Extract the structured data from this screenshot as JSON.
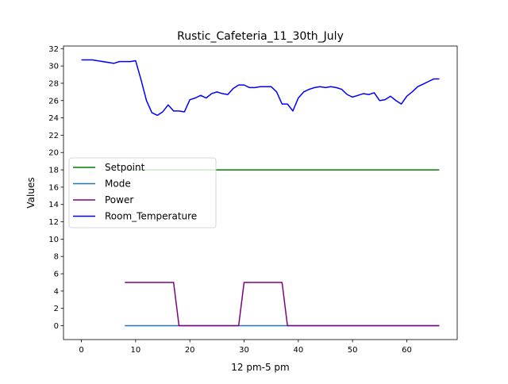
{
  "chart_data": {
    "type": "line",
    "title": "Rustic_Cafeteria_11_30th_July",
    "xlabel": "12 pm-5 pm",
    "ylabel": "Values",
    "xlim": [
      -3.3,
      69.3
    ],
    "ylim": [
      -1.6,
      32.3
    ],
    "xticks": [
      0,
      10,
      20,
      30,
      40,
      50,
      60
    ],
    "yticks": [
      0,
      2,
      4,
      6,
      8,
      10,
      12,
      14,
      16,
      18,
      20,
      22,
      24,
      26,
      28,
      30,
      32
    ],
    "grid": false,
    "legend_position": "center-left",
    "series": [
      {
        "name": "Setpoint",
        "color": "#008000",
        "points": [
          [
            8,
            18
          ],
          [
            66,
            18
          ]
        ]
      },
      {
        "name": "Mode",
        "color": "#1f77b4",
        "points": [
          [
            8,
            0
          ],
          [
            66,
            0
          ]
        ]
      },
      {
        "name": "Power",
        "color": "#800080",
        "points": [
          [
            8,
            5
          ],
          [
            17,
            5
          ],
          [
            18,
            0
          ],
          [
            29,
            0
          ],
          [
            30,
            5
          ],
          [
            37,
            5
          ],
          [
            38,
            0
          ],
          [
            66,
            0
          ]
        ]
      },
      {
        "name": "Room_Temperature",
        "color": "#0000ff",
        "points": [
          [
            0,
            30.7
          ],
          [
            2,
            30.7
          ],
          [
            6,
            30.3
          ],
          [
            7,
            30.5
          ],
          [
            8,
            30.5
          ],
          [
            9,
            30.5
          ],
          [
            10,
            30.6
          ],
          [
            11,
            28.4
          ],
          [
            12,
            26.0
          ],
          [
            13,
            24.6
          ],
          [
            14,
            24.3
          ],
          [
            15,
            24.7
          ],
          [
            16,
            25.5
          ],
          [
            17,
            24.8
          ],
          [
            18,
            24.8
          ],
          [
            19,
            24.7
          ],
          [
            20,
            26.1
          ],
          [
            21,
            26.3
          ],
          [
            22,
            26.6
          ],
          [
            23,
            26.3
          ],
          [
            24,
            26.8
          ],
          [
            25,
            27.0
          ],
          [
            26,
            26.8
          ],
          [
            27,
            26.7
          ],
          [
            28,
            27.4
          ],
          [
            29,
            27.8
          ],
          [
            30,
            27.8
          ],
          [
            31,
            27.5
          ],
          [
            32,
            27.5
          ],
          [
            33,
            27.6
          ],
          [
            34,
            27.6
          ],
          [
            35,
            27.6
          ],
          [
            36,
            27.0
          ],
          [
            37,
            25.6
          ],
          [
            38,
            25.6
          ],
          [
            39,
            24.8
          ],
          [
            40,
            26.3
          ],
          [
            41,
            27.0
          ],
          [
            42,
            27.3
          ],
          [
            43,
            27.5
          ],
          [
            44,
            27.6
          ],
          [
            45,
            27.5
          ],
          [
            46,
            27.6
          ],
          [
            47,
            27.5
          ],
          [
            48,
            27.3
          ],
          [
            49,
            26.7
          ],
          [
            50,
            26.4
          ],
          [
            51,
            26.6
          ],
          [
            52,
            26.8
          ],
          [
            53,
            26.7
          ],
          [
            54,
            26.9
          ],
          [
            55,
            26.0
          ],
          [
            56,
            26.1
          ],
          [
            57,
            26.5
          ],
          [
            58,
            26.0
          ],
          [
            59,
            25.6
          ],
          [
            60,
            26.5
          ],
          [
            61,
            27.0
          ],
          [
            62,
            27.6
          ],
          [
            63,
            27.9
          ],
          [
            64,
            28.2
          ],
          [
            65,
            28.5
          ],
          [
            66,
            28.5
          ]
        ]
      }
    ]
  }
}
